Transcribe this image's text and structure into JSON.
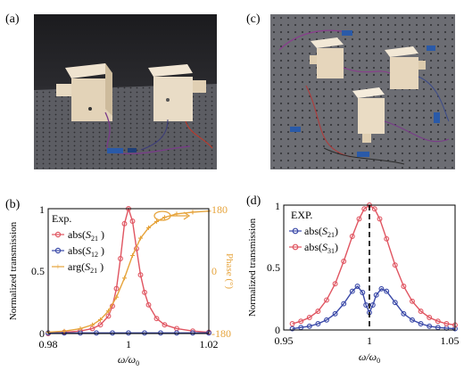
{
  "panels": {
    "a": "(a)",
    "b": "(b)",
    "c": "(c)",
    "d": "(d)"
  },
  "colors": {
    "red": "#e05561",
    "blue": "#3a49a8",
    "orange": "#e6a33a"
  },
  "chart_data": [
    {
      "panel": "b",
      "type": "line",
      "xlabel": "ω/ω0",
      "ylabel_left": "Normalized transmission",
      "ylabel_right": "Phase (°)",
      "xlim": [
        0.98,
        1.02
      ],
      "ylim_left": [
        0,
        1
      ],
      "ylim_right": [
        -180,
        180
      ],
      "x_ticks": [
        "0.98",
        "1",
        "1.02"
      ],
      "y_ticks_left": [
        "0",
        "0.5",
        "1"
      ],
      "y_ticks_right": [
        "-180",
        "0",
        "180"
      ],
      "legend_title": "Exp.",
      "legend": [
        {
          "text": "abs(S21 )",
          "sub": "21"
        },
        {
          "text": "abs(S12 )",
          "sub": "12"
        },
        {
          "text": "arg(S21 )",
          "sub": "21"
        }
      ],
      "series": [
        {
          "name": "abs(S21)",
          "axis": "left",
          "color": "#e05561",
          "marker": "circle",
          "x": [
            0.98,
            0.984,
            0.988,
            0.991,
            0.993,
            0.995,
            0.996,
            0.997,
            0.998,
            0.999,
            1.0,
            1.001,
            1.002,
            1.003,
            1.004,
            1.005,
            1.007,
            1.009,
            1.012,
            1.016,
            1.02
          ],
          "y": [
            0.0,
            0.01,
            0.02,
            0.04,
            0.07,
            0.14,
            0.22,
            0.36,
            0.6,
            0.88,
            1.0,
            0.9,
            0.68,
            0.47,
            0.33,
            0.23,
            0.12,
            0.07,
            0.04,
            0.02,
            0.01
          ]
        },
        {
          "name": "abs(S12)",
          "axis": "left",
          "color": "#3a49a8",
          "marker": "circle",
          "x": [
            0.98,
            0.984,
            0.988,
            0.992,
            0.996,
            1.0,
            1.004,
            1.008,
            1.012,
            1.016,
            1.02
          ],
          "y": [
            0.005,
            0.005,
            0.005,
            0.005,
            0.005,
            0.005,
            0.005,
            0.005,
            0.005,
            0.005,
            0.005
          ]
        },
        {
          "name": "arg(S21)",
          "axis": "right",
          "color": "#e6a33a",
          "marker": "plus",
          "x": [
            0.98,
            0.984,
            0.988,
            0.991,
            0.993,
            0.995,
            0.997,
            0.999,
            1.001,
            1.003,
            1.005,
            1.007,
            1.009,
            1.012,
            1.016,
            1.02
          ],
          "y": [
            -176,
            -173,
            -166,
            -155,
            -140,
            -115,
            -75,
            -20,
            45,
            95,
            125,
            143,
            155,
            165,
            170,
            173
          ]
        }
      ]
    },
    {
      "panel": "d",
      "type": "line",
      "xlabel": "ω/ω0",
      "ylabel": "Normalized transmission",
      "xlim": [
        0.95,
        1.05
      ],
      "ylim": [
        0,
        1
      ],
      "x_ticks": [
        "0.95",
        "1",
        "1.05"
      ],
      "y_ticks": [
        "0",
        "0.5",
        "1"
      ],
      "legend_title": "EXP.",
      "legend": [
        {
          "text": "abs(S21)",
          "sub": "21"
        },
        {
          "text": "abs(S31)",
          "sub": "31"
        }
      ],
      "series": [
        {
          "name": "abs(S21)",
          "color": "#3a49a8",
          "marker": "circle",
          "x": [
            0.955,
            0.96,
            0.965,
            0.97,
            0.975,
            0.98,
            0.985,
            0.99,
            0.993,
            0.996,
            0.998,
            1.0,
            1.002,
            1.004,
            1.007,
            1.01,
            1.015,
            1.02,
            1.025,
            1.03,
            1.035,
            1.04,
            1.045,
            1.05
          ],
          "y": [
            0.01,
            0.02,
            0.03,
            0.05,
            0.08,
            0.13,
            0.21,
            0.31,
            0.35,
            0.3,
            0.2,
            0.14,
            0.2,
            0.28,
            0.33,
            0.31,
            0.22,
            0.13,
            0.08,
            0.05,
            0.03,
            0.02,
            0.015,
            0.01
          ]
        },
        {
          "name": "abs(S31)",
          "color": "#e05561",
          "marker": "circle",
          "x": [
            0.955,
            0.96,
            0.965,
            0.97,
            0.975,
            0.98,
            0.985,
            0.99,
            0.994,
            0.997,
            1.0,
            1.003,
            1.006,
            1.01,
            1.015,
            1.02,
            1.025,
            1.03,
            1.035,
            1.04,
            1.045,
            1.05
          ],
          "y": [
            0.05,
            0.07,
            0.1,
            0.15,
            0.24,
            0.37,
            0.55,
            0.75,
            0.89,
            0.97,
            1.0,
            0.97,
            0.89,
            0.73,
            0.52,
            0.35,
            0.23,
            0.15,
            0.1,
            0.07,
            0.05,
            0.04
          ]
        }
      ],
      "annotations": [
        "dashed vertical line at ω/ω0 = 1"
      ]
    }
  ]
}
